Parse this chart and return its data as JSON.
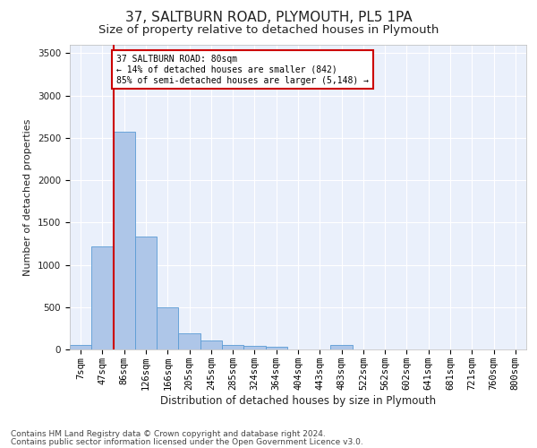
{
  "title1": "37, SALTBURN ROAD, PLYMOUTH, PL5 1PA",
  "title2": "Size of property relative to detached houses in Plymouth",
  "xlabel": "Distribution of detached houses by size in Plymouth",
  "ylabel": "Number of detached properties",
  "categories": [
    "7sqm",
    "47sqm",
    "86sqm",
    "126sqm",
    "166sqm",
    "205sqm",
    "245sqm",
    "285sqm",
    "324sqm",
    "364sqm",
    "404sqm",
    "443sqm",
    "483sqm",
    "522sqm",
    "562sqm",
    "602sqm",
    "641sqm",
    "681sqm",
    "721sqm",
    "760sqm",
    "800sqm"
  ],
  "values": [
    50,
    1220,
    2570,
    1330,
    500,
    195,
    110,
    50,
    45,
    30,
    5,
    5,
    50,
    0,
    0,
    0,
    0,
    0,
    0,
    0,
    0
  ],
  "bar_color": "#aec6e8",
  "bar_edge_color": "#5a9bd5",
  "annotation_text": "37 SALTBURN ROAD: 80sqm\n← 14% of detached houses are smaller (842)\n85% of semi-detached houses are larger (5,148) →",
  "annotation_box_color": "#ffffff",
  "annotation_box_edge_color": "#cc0000",
  "red_line_color": "#cc0000",
  "ylim": [
    0,
    3600
  ],
  "yticks": [
    0,
    500,
    1000,
    1500,
    2000,
    2500,
    3000,
    3500
  ],
  "bg_color": "#eaf0fb",
  "grid_color": "#ffffff",
  "footer1": "Contains HM Land Registry data © Crown copyright and database right 2024.",
  "footer2": "Contains public sector information licensed under the Open Government Licence v3.0.",
  "title1_fontsize": 11,
  "title2_fontsize": 9.5,
  "xlabel_fontsize": 8.5,
  "ylabel_fontsize": 8,
  "tick_fontsize": 7.5,
  "footer_fontsize": 6.5
}
